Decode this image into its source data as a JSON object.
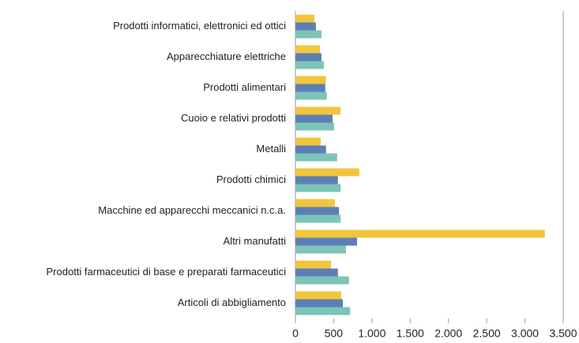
{
  "chart_data": {
    "type": "hbar",
    "categories": [
      "Prodotti informatici, elettronici ed ottici",
      "Apparecchiature elettriche",
      "Prodotti alimentari",
      "Cuoio e relativi prodotti",
      "Metalli",
      "Prodotti chimici",
      "Macchine ed apparecchi meccanici n.c.a.",
      "Altri manufatti",
      "Prodotti farmaceutici di base e preparati farmaceutici",
      "Articoli di abbigliamento"
    ],
    "series": [
      {
        "color": "#f2c53d",
        "values": [
          248,
          320,
          400,
          590,
          330,
          835,
          515,
          3260,
          465,
          600
        ]
      },
      {
        "color": "#5b7fb5",
        "values": [
          268,
          340,
          390,
          485,
          400,
          555,
          570,
          805,
          555,
          620
        ]
      },
      {
        "color": "#7cc4b8",
        "values": [
          340,
          372,
          410,
          505,
          545,
          590,
          590,
          660,
          700,
          715
        ]
      }
    ],
    "xlim": [
      0,
      3500
    ],
    "xticks": [
      0,
      500,
      {
        "value": 1000,
        "label": "1.000"
      },
      {
        "value": 1500,
        "label": "1.500"
      },
      {
        "value": 2000,
        "label": "2.000"
      },
      {
        "value": 2500,
        "label": "2.500"
      },
      {
        "value": 3000,
        "label": "3.000"
      },
      {
        "value": 3500,
        "label": "3.500"
      }
    ],
    "grid": false
  }
}
